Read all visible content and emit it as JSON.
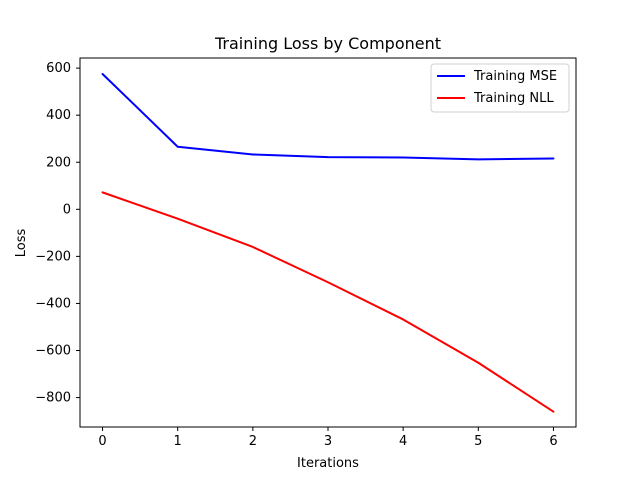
{
  "chart_data": {
    "type": "line",
    "title": "Training Loss by Component",
    "xlabel": "Iterations",
    "ylabel": "Loss",
    "x": [
      0,
      1,
      2,
      3,
      4,
      5,
      6
    ],
    "x_ticks": [
      "0",
      "1",
      "2",
      "3",
      "4",
      "5",
      "6"
    ],
    "y_ticks": [
      {
        "value": 600,
        "label": "600"
      },
      {
        "value": 400,
        "label": "400"
      },
      {
        "value": 200,
        "label": "200"
      },
      {
        "value": 0,
        "label": "0"
      },
      {
        "value": -200,
        "label": "−200"
      },
      {
        "value": -400,
        "label": "−400"
      },
      {
        "value": -600,
        "label": "−600"
      },
      {
        "value": -800,
        "label": "−800"
      }
    ],
    "xlim": [
      -0.3,
      6.3
    ],
    "ylim": [
      -925,
      643
    ],
    "grid": false,
    "legend_position": "top-right",
    "series": [
      {
        "name": "Training MSE",
        "color": "#0000ff",
        "values": [
          575,
          266,
          233,
          222,
          220,
          212,
          216
        ]
      },
      {
        "name": "Training NLL",
        "color": "#ff0000",
        "values": [
          72,
          -40,
          -160,
          -310,
          -468,
          -652,
          -860
        ]
      }
    ]
  }
}
